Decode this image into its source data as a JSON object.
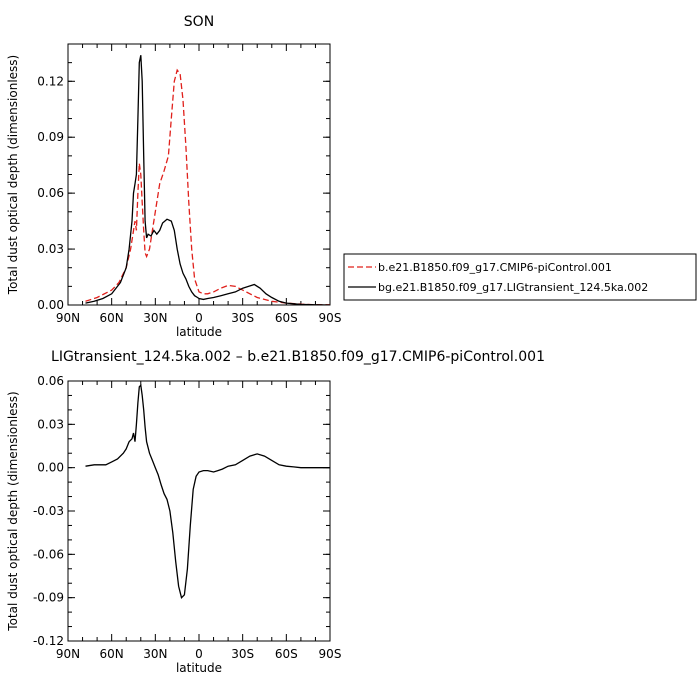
{
  "chart_data": [
    {
      "type": "line",
      "title": "SON",
      "xlabel": "latitude",
      "ylabel": "Total dust optical depth (dimensionless)",
      "xlim": [
        90,
        -90
      ],
      "ylim": [
        0,
        0.14
      ],
      "x_ticks": [
        90,
        60,
        30,
        0,
        -30,
        -60,
        -90
      ],
      "x_tick_labels": [
        "90N",
        "60N",
        "30N",
        "0",
        "30S",
        "60S",
        "90S"
      ],
      "y_ticks": [
        0,
        0.03,
        0.06,
        0.09,
        0.12
      ],
      "y_tick_labels": [
        "0.00",
        "0.03",
        "0.06",
        "0.09",
        "0.12"
      ],
      "legend_position": "right",
      "series": [
        {
          "name": "b.e21.B1850.f09_g17.CMIP6-piControl.001",
          "color": "#e0201b",
          "dash": "dashed",
          "x": [
            78,
            70,
            60,
            55,
            50,
            47,
            44,
            43,
            42,
            41,
            40,
            39,
            38,
            37,
            36,
            34,
            32,
            30,
            27,
            24,
            21,
            19,
            17,
            15,
            13,
            11,
            9,
            7,
            5,
            3,
            0,
            -3,
            -6,
            -10,
            -15,
            -20,
            -25,
            -30,
            -35,
            -40,
            -50,
            -60,
            -70,
            -78,
            -90
          ],
          "y": [
            0.002,
            0.004,
            0.008,
            0.012,
            0.02,
            0.03,
            0.045,
            0.04,
            0.06,
            0.076,
            0.07,
            0.055,
            0.04,
            0.028,
            0.026,
            0.03,
            0.04,
            0.05,
            0.065,
            0.072,
            0.08,
            0.1,
            0.12,
            0.126,
            0.124,
            0.11,
            0.085,
            0.055,
            0.03,
            0.014,
            0.007,
            0.006,
            0.006,
            0.007,
            0.009,
            0.0105,
            0.01,
            0.008,
            0.006,
            0.004,
            0.002,
            0.001,
            0.0005,
            0.0002,
            0.0001
          ]
        },
        {
          "name": "bg.e21.B1850.f09_g17.LIGtransient_124.5ka.002",
          "color": "#000000",
          "dash": "solid",
          "x": [
            78,
            72,
            66,
            60,
            54,
            50,
            48,
            46,
            45,
            44,
            43,
            42,
            41,
            40,
            39,
            38,
            37,
            36,
            35,
            33,
            31,
            29,
            27,
            25,
            22,
            19,
            17,
            15,
            13,
            11,
            9,
            7,
            5,
            3,
            1,
            0,
            -3,
            -6,
            -10,
            -15,
            -20,
            -25,
            -30,
            -34,
            -38,
            -42,
            -46,
            -50,
            -55,
            -60,
            -70,
            -80,
            -90
          ],
          "y": [
            0.001,
            0.002,
            0.0035,
            0.006,
            0.012,
            0.02,
            0.03,
            0.045,
            0.06,
            0.065,
            0.07,
            0.1,
            0.13,
            0.134,
            0.12,
            0.08,
            0.045,
            0.036,
            0.038,
            0.037,
            0.04,
            0.038,
            0.04,
            0.044,
            0.046,
            0.045,
            0.04,
            0.03,
            0.022,
            0.017,
            0.014,
            0.01,
            0.007,
            0.005,
            0.004,
            0.0035,
            0.003,
            0.0035,
            0.004,
            0.005,
            0.006,
            0.007,
            0.009,
            0.01,
            0.011,
            0.009,
            0.006,
            0.004,
            0.002,
            0.001,
            0.0003,
            0.0001,
            0.0
          ]
        }
      ]
    },
    {
      "type": "line",
      "title": "LIGtransient_124.5ka.002 – b.e21.B1850.f09_g17.CMIP6-piControl.001",
      "xlabel": "latitude",
      "ylabel": "Total dust optical depth (dimensionless)",
      "xlim": [
        90,
        -90
      ],
      "ylim": [
        -0.12,
        0.06
      ],
      "x_ticks": [
        90,
        60,
        30,
        0,
        -30,
        -60,
        -90
      ],
      "x_tick_labels": [
        "90N",
        "60N",
        "30N",
        "0",
        "30S",
        "60S",
        "90S"
      ],
      "y_ticks": [
        -0.12,
        -0.09,
        -0.06,
        -0.03,
        0,
        0.03,
        0.06
      ],
      "y_tick_labels": [
        "-0.12",
        "-0.09",
        "-0.06",
        "-0.03",
        "0.00",
        "0.03",
        "0.06"
      ],
      "series": [
        {
          "name": "",
          "color": "#000000",
          "dash": "solid",
          "x": [
            78,
            72,
            68,
            64,
            60,
            56,
            52,
            50,
            48,
            46,
            45,
            44,
            43,
            42,
            41,
            40,
            39,
            38,
            37,
            36,
            34,
            32,
            30,
            28,
            26,
            24,
            22,
            20,
            18,
            16,
            14,
            12,
            10,
            8,
            6,
            4,
            2,
            0,
            -3,
            -6,
            -10,
            -13,
            -16,
            -20,
            -25,
            -30,
            -35,
            -40,
            -45,
            -50,
            -55,
            -60,
            -65,
            -70,
            -80,
            -90
          ],
          "y": [
            0.001,
            0.002,
            0.002,
            0.002,
            0.004,
            0.006,
            0.01,
            0.013,
            0.018,
            0.02,
            0.024,
            0.018,
            0.03,
            0.045,
            0.056,
            0.057,
            0.05,
            0.04,
            0.028,
            0.018,
            0.01,
            0.005,
            0.0,
            -0.005,
            -0.012,
            -0.018,
            -0.022,
            -0.03,
            -0.045,
            -0.065,
            -0.082,
            -0.09,
            -0.088,
            -0.07,
            -0.04,
            -0.015,
            -0.006,
            -0.003,
            -0.002,
            -0.002,
            -0.003,
            -0.002,
            -0.001,
            0.001,
            0.002,
            0.005,
            0.008,
            0.0095,
            0.008,
            0.005,
            0.002,
            0.001,
            0.0005,
            0.0,
            0.0,
            0.0
          ]
        }
      ]
    }
  ]
}
